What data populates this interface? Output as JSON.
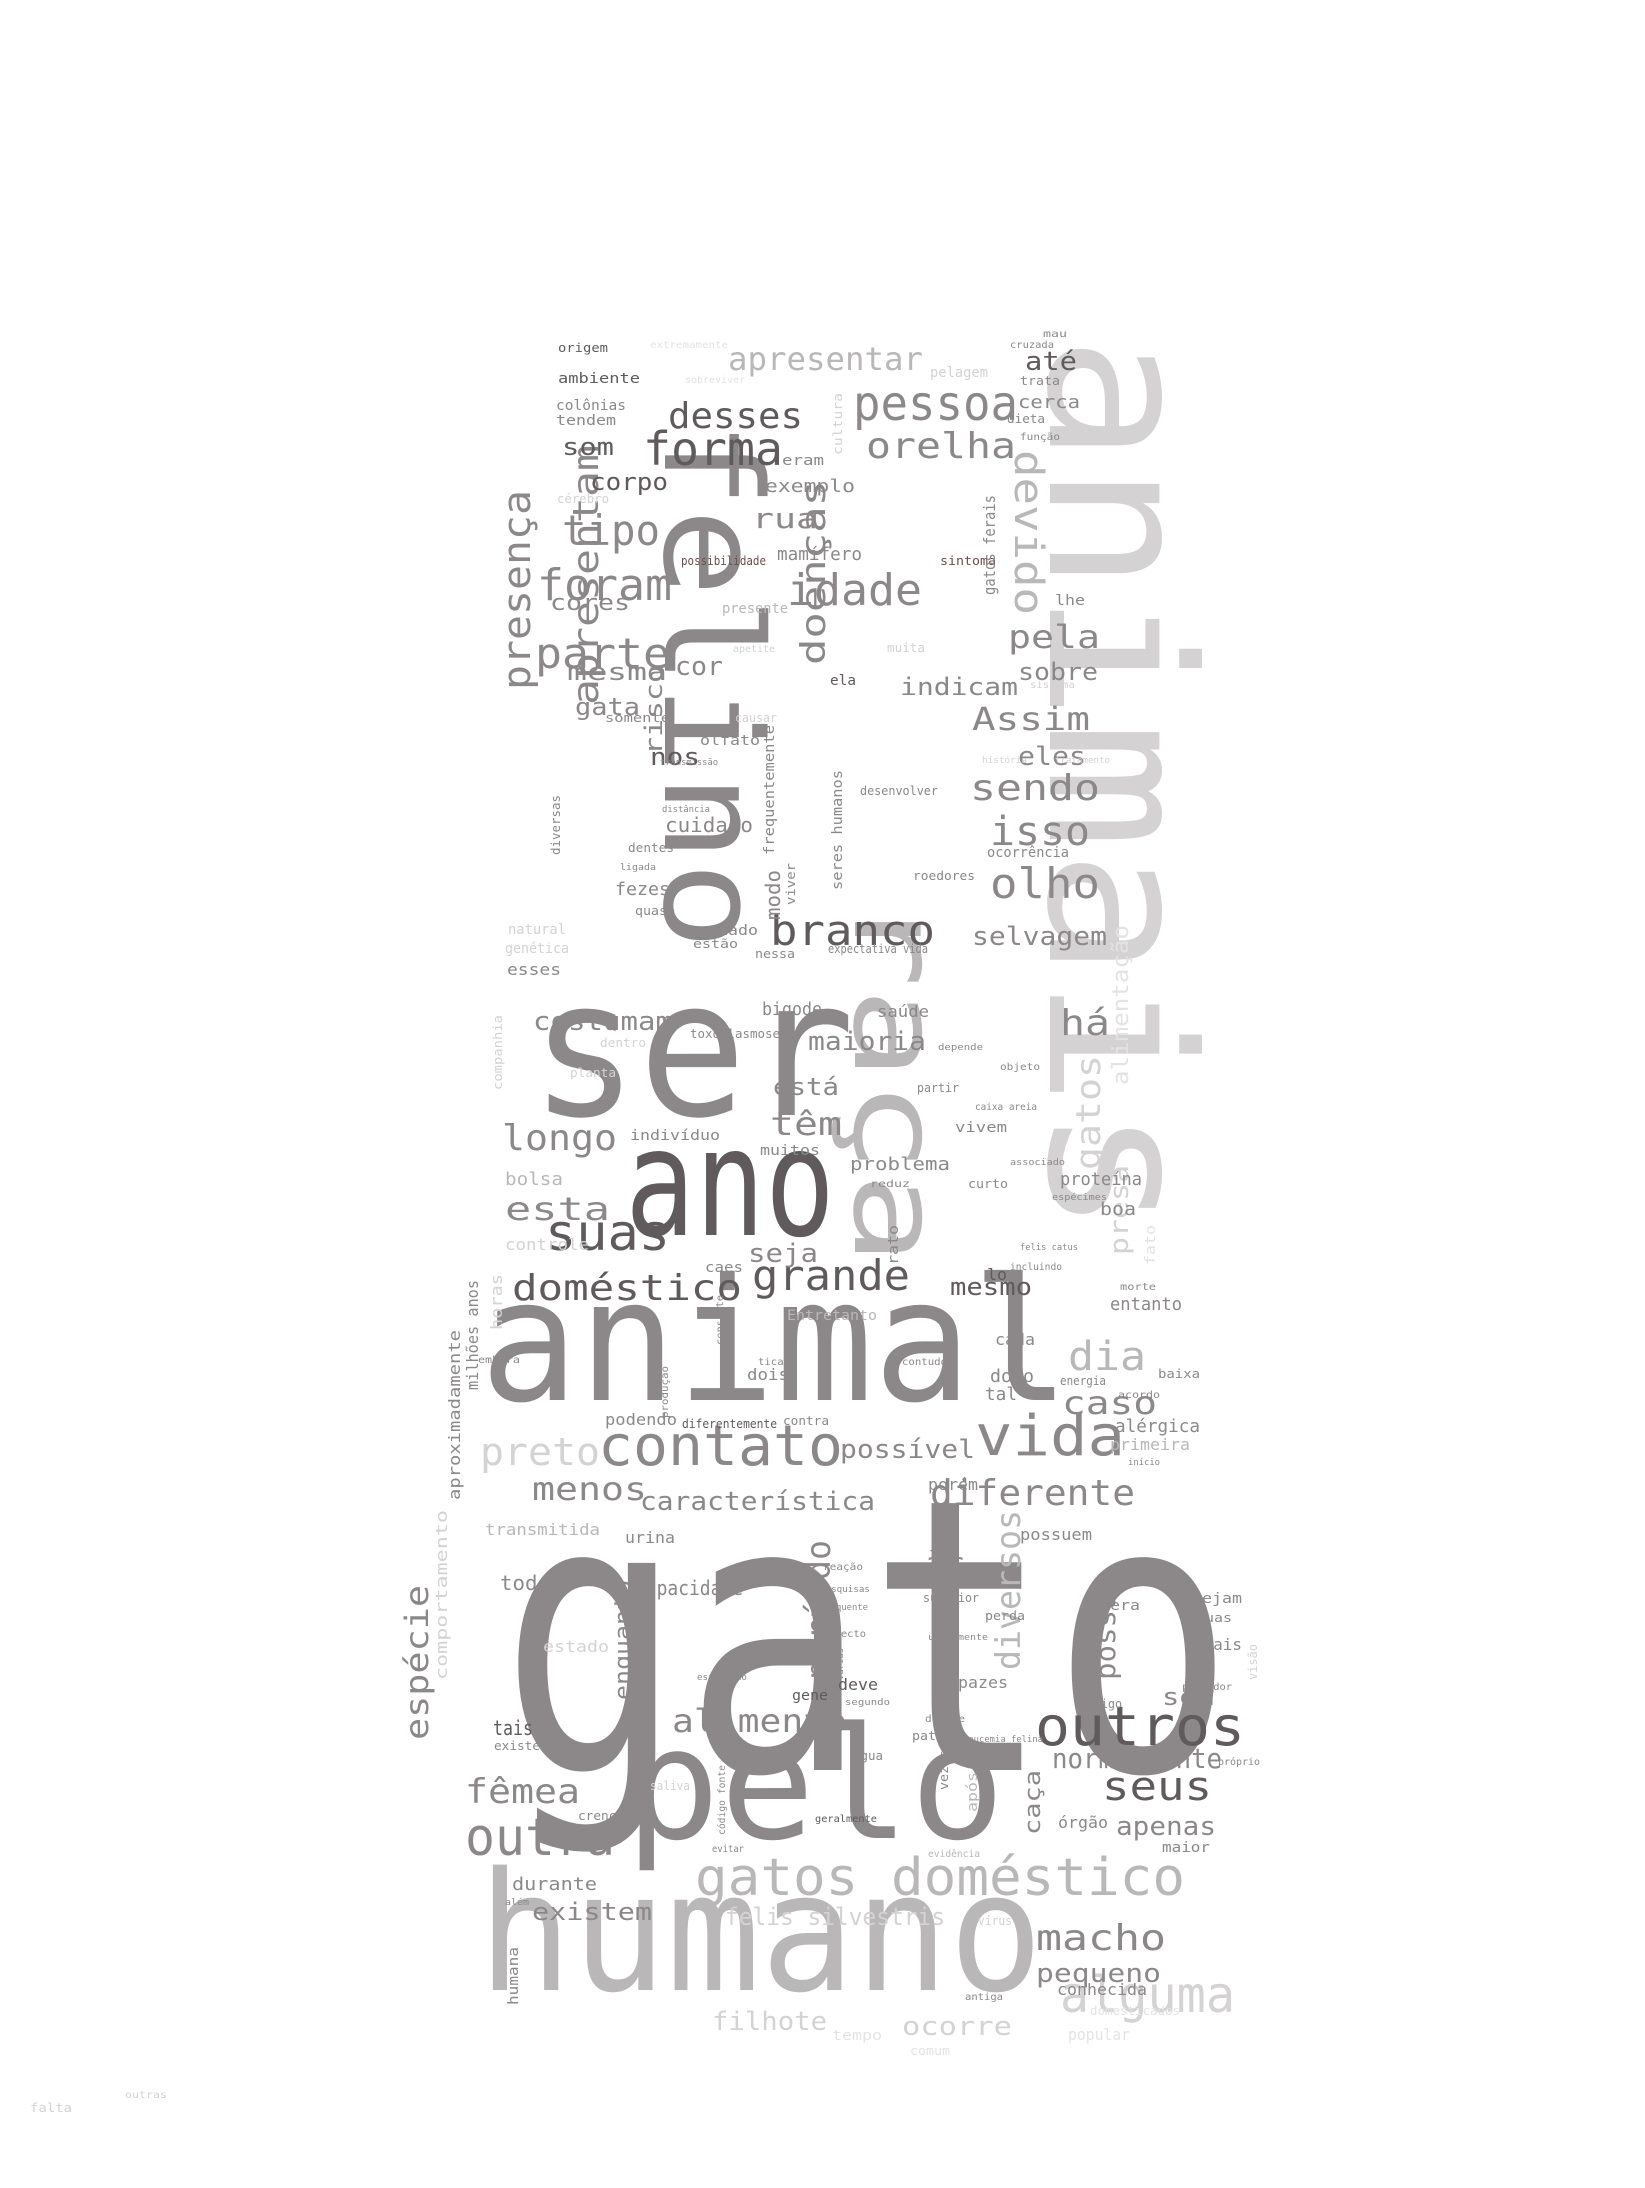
{
  "words": {
    "gato": "gato",
    "animais": "animais",
    "humano": "humano",
    "ser": "ser",
    "ano": "ano",
    "animal": "animal",
    "felino": "felino",
    "pelo": "pelo",
    "raca": "raça",
    "gatos_domestico": "gatos doméstico",
    "contato": "contato",
    "alguma": "alguma",
    "outros": "outros",
    "vida": "vida",
    "outra": "outra",
    "domestico": "doméstico",
    "grande": "grande",
    "suas": "suas",
    "forma": "forma",
    "pessoa": "pessoa",
    "apresentar": "apresentar",
    "desses": "desses",
    "orelha": "orelha",
    "idade": "idade",
    "foram": "foram",
    "parte": "parte",
    "tipo": "tipo",
    "devido": "devido",
    "presenca": "presença",
    "apresentam": "apresentam",
    "doencas": "doenças",
    "branco": "branco",
    "olho": "olho",
    "isso": "isso",
    "sendo": "sendo",
    "assim": "Assim",
    "pela": "pela",
    "longo": "longo",
    "diferente": "diferente",
    "dia": "dia",
    "caso": "caso",
    "macho": "macho",
    "seus": "seus",
    "fêmea": "fêmea",
    "especie": "espécie",
    "periodo": "período",
    "diversos": "diversos",
    "alimento": "alimento",
    "preto": "preto",
    "menos": "menos",
    "caracteristica": "característica",
    "possivel": "possível",
    "ha": "há",
    "tem": "têm",
    "gatos": "gatos",
    "normalmente": "normalmente",
    "apenas": "apenas",
    "felis_silvestris": "felis silvestris",
    "filhote": "filhote",
    "ocorre": "ocorre",
    "existem": "existem",
    "pequeno": "pequeno",
    "seja": "seja",
    "esta": "esta",
    "costumam": "costumam",
    "maioria": "maioria",
    "esta2": "está",
    "selvagem": "selvagem",
    "indicam": "indicam",
    "sobre": "sobre",
    "eles": "eles",
    "rua": "rua",
    "cor": "cor",
    "mesma": "mesma",
    "gata": "gata",
    "som": "som",
    "corpo": "corpo",
    "cores": "cores",
    "risco": "risco",
    "nos": "nos",
    "cuidado": "cuidado",
    "modo": "modo",
    "mesmo": "mesmo",
    "ate": "até",
    "cerca": "cerca",
    "exemplo": "exemplo",
    "mamifero": "mamífero",
    "as": "às",
    "possui": "possui",
    "sem": "sem",
    "caca": "caça",
    "presa": "presa",
    "alimentacao": "alimentação",
    "entanto": "entanto",
    "todo": "todo",
    "capacidade": "capacidade",
    "enquanto": "enquanto",
    "tais": "tais",
    "durante": "durante",
    "problema": "problema",
    "proteina": "proteína",
    "boa": "boa",
    "bolsa": "bolsa",
    "controle": "controle",
    "bigode": "bigode",
    "saude": "saúde",
    "horas": "horas",
    "milhoes_anos": "milhões anos",
    "aproximadamente": "aproximadamente",
    "comportamento": "comportamento",
    "transmitida": "transmitida",
    "urina": "urina",
    "podendo": "podendo",
    "porem": "porém",
    "possuem": "possuem",
    "alergica": "alérgica",
    "primeira": "primeira",
    "cada": "cada",
    "dono": "dono",
    "tal": "tal",
    "dois": "dois",
    "fezes": "fezes",
    "humana": "humana",
    "conhecida": "conhecida",
    "popular": "popular",
    "orgao": "órgão",
    "maior": "maior",
    "deve": "deve",
    "gene": "gene",
    "capazes": "capazes",
    "era": "era",
    "sejam": "sejam",
    "duas": "duas",
    "quais": "quais",
    "apos": "após",
    "existe": "existe",
    "estado": "estado",
    "individuo": "indivíduo",
    "muitos": "muitos",
    "vivem": "vivem",
    "caes": "caes",
    "lo": "lo",
    "entretanto": "Entretanto",
    "origem": "origem",
    "ambiente": "ambiente",
    "colonias": "colônias",
    "tendem": "tendem",
    "cerebro": "cérebro",
    "eram": "eram",
    "ela": "ela",
    "somente": "somente",
    "olfato": "olfato",
    "lhe": "lhe",
    "trata": "trata",
    "dieta": "dieta",
    "funcao": "função",
    "presente": "presente",
    "natural": "natural",
    "genetica": "genética",
    "esses": "esses",
    "companhia": "companhia",
    "dentro": "dentro",
    "sintoma": "sintoma",
    "possibilidade": "possibilidade",
    "gatos_ferais": "gatos ferais",
    "desenvolver": "desenvolver",
    "roedores": "roedores",
    "ocorrencia": "ocorrência",
    "miado": "miado",
    "estao": "estão",
    "nessa": "nessa",
    "frequentemente": "frequentemente",
    "seres_humanos": "seres humanos",
    "viver": "viver",
    "cultura": "cultura",
    "dentes": "dentes",
    "diversas": "diversas",
    "quase": "quase",
    "toxoplasmose": "toxoplasmose",
    "expectativa_vida": "expectativa vida",
    "planta": "planta",
    "rins": "rins",
    "partir": "partir",
    "caixa_areia": "caixa areia",
    "objeto": "objeto",
    "curto": "curto",
    "reduz": "reduz",
    "rato": "rato",
    "consiste": "consiste",
    "fato": "fato",
    "baixa": "baixa",
    "acordo": "acordo",
    "ticar": "ticar",
    "contra": "contra",
    "diferentemente": "diferentemente",
    "contudo": "contudo",
    "embora": "embora",
    "perda": "perda",
    "superior": "superior",
    "predador": "predador",
    "antigo": "antigo",
    "proprio": "próprio",
    "visao": "visão",
    "agua": "água",
    "pata": "pata",
    "vezes": "vezes",
    "leucemia_felina": "leucemia felina",
    "geralmente": "geralmente",
    "saliva": "saliva",
    "crenca": "crença",
    "alimentar": "alimentar",
    "codigo_fonte": "código fonte",
    "evitar": "evitar",
    "evidencia": "evidência",
    "virus": "vírus",
    "antiga": "antiga",
    "tempo": "tempo",
    "comum": "comum",
    "domesticados": "domesticados",
    "extremamente": "extremamente",
    "sobreviver": "sobreviver",
    "pelagem": "pelagem",
    "mau": "mau",
    "cruzada": "cruzada",
    "causar": "causar",
    "muita": "muita",
    "apetite": "apetite",
    "sistema": "sistema",
    "falta": "falta",
    "outras": "outras",
    "historia": "história",
    "tratamento": "tratamento",
    "especimes": "espécimes",
    "associado": "associado",
    "depende": "depende",
    "morte": "morte",
    "inicio": "início",
    "incluindo": "incluindo",
    "felis_catus": "felis catus",
    "doente": "doente",
    "estimacao": "estimação",
    "usualmente": "usualmente",
    "aspecto": "aspecto",
    "varias": "várias",
    "segundo": "segundo",
    "fonte": "fonte",
    "ligada": "ligada",
    "distancia": "distância",
    "transmissao": "transmissão",
    "producao": "produção",
    "reacao": "reação",
    "energia": "energia",
    "pesquisas": "pesquisas",
    "frequente": "frequente",
    "alem": "além",
    "raiva": "raiva",
    "mesmo2": "mesmo"
  }
}
